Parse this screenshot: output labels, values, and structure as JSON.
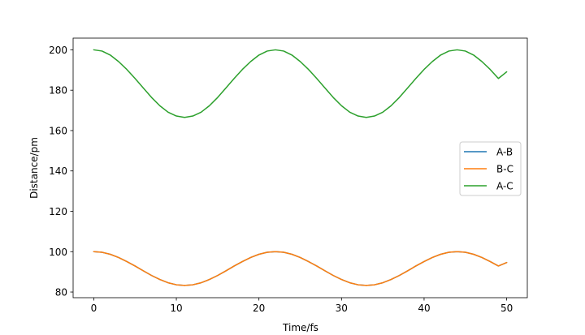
{
  "chart_data": {
    "type": "line",
    "title": "",
    "xlabel": "Time/fs",
    "ylabel": "Distance/pm",
    "xlim": [
      -2.5,
      52.5
    ],
    "ylim": [
      77.2,
      205.8
    ],
    "xticks": [
      0,
      10,
      20,
      30,
      40,
      50
    ],
    "yticks": [
      80,
      100,
      120,
      140,
      160,
      180,
      200
    ],
    "grid": false,
    "legend_position": "center-right",
    "x": [
      0,
      1,
      2,
      3,
      4,
      5,
      6,
      7,
      8,
      9,
      10,
      11,
      12,
      13,
      14,
      15,
      16,
      17,
      18,
      19,
      20,
      21,
      22,
      23,
      24,
      25,
      26,
      27,
      28,
      29,
      30,
      31,
      32,
      33,
      34,
      35,
      36,
      37,
      38,
      39,
      40,
      41,
      42,
      43,
      44,
      45,
      46,
      47,
      48,
      49,
      50
    ],
    "series": [
      {
        "name": "A-B",
        "color": "#1f77b4",
        "values": [
          100.0,
          99.7,
          98.7,
          97.1,
          95.1,
          92.9,
          90.5,
          88.2,
          86.2,
          84.6,
          83.6,
          83.3,
          83.6,
          84.6,
          86.2,
          88.2,
          90.5,
          92.9,
          95.1,
          97.1,
          98.7,
          99.7,
          100.0,
          99.7,
          98.7,
          97.1,
          95.1,
          92.9,
          90.5,
          88.2,
          86.2,
          84.6,
          83.6,
          83.3,
          83.6,
          84.6,
          86.2,
          88.2,
          90.5,
          92.9,
          95.1,
          97.1,
          98.7,
          99.7,
          100.0,
          99.7,
          98.7,
          97.1,
          95.1,
          92.9,
          94.6
        ]
      },
      {
        "name": "B-C",
        "color": "#ff7f0e",
        "values": [
          100.0,
          99.7,
          98.7,
          97.1,
          95.1,
          92.9,
          90.5,
          88.2,
          86.2,
          84.6,
          83.6,
          83.3,
          83.6,
          84.6,
          86.2,
          88.2,
          90.5,
          92.9,
          95.1,
          97.1,
          98.7,
          99.7,
          100.0,
          99.7,
          98.7,
          97.1,
          95.1,
          92.9,
          90.5,
          88.2,
          86.2,
          84.6,
          83.6,
          83.3,
          83.6,
          84.6,
          86.2,
          88.2,
          90.5,
          92.9,
          95.1,
          97.1,
          98.7,
          99.7,
          100.0,
          99.7,
          98.7,
          97.1,
          95.1,
          92.9,
          94.6
        ]
      },
      {
        "name": "A-C",
        "color": "#2ca02c",
        "values": [
          200.0,
          199.4,
          197.4,
          194.2,
          190.3,
          185.8,
          181.1,
          176.4,
          172.3,
          169.1,
          167.2,
          166.5,
          167.2,
          169.1,
          172.3,
          176.4,
          181.1,
          185.8,
          190.3,
          194.2,
          197.4,
          199.4,
          200.0,
          199.4,
          197.4,
          194.2,
          190.3,
          185.8,
          181.1,
          176.4,
          172.3,
          169.1,
          167.2,
          166.5,
          167.2,
          169.1,
          172.3,
          176.4,
          181.1,
          185.8,
          190.3,
          194.2,
          197.4,
          199.4,
          200.0,
          199.4,
          197.4,
          194.2,
          190.3,
          185.8,
          189.1
        ]
      }
    ]
  }
}
